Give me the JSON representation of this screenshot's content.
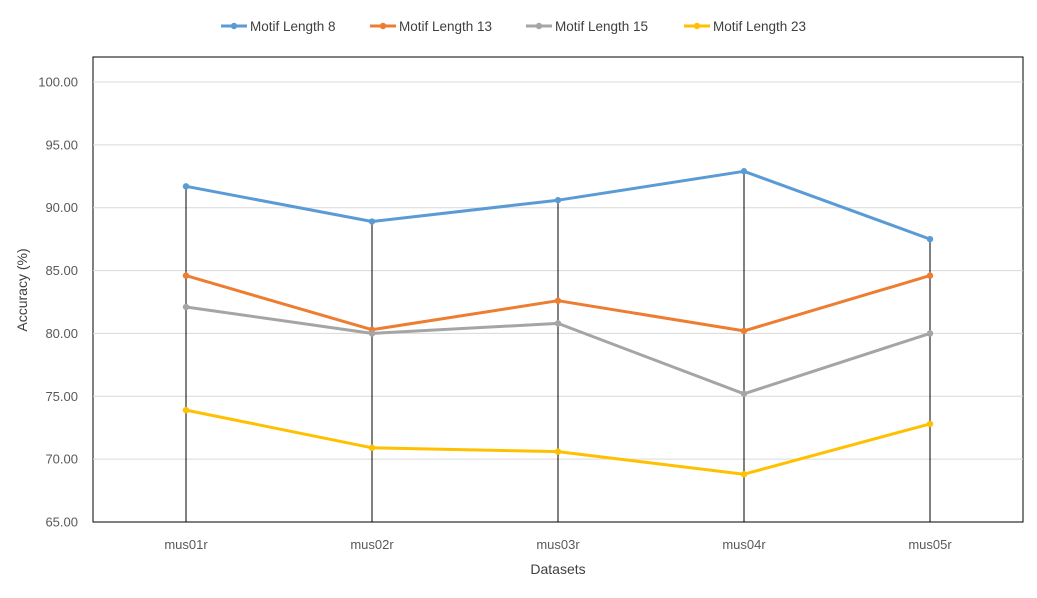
{
  "chart_data": {
    "type": "line",
    "xlabel": "Datasets",
    "ylabel": "Accuracy (%)",
    "categories": [
      "mus01r",
      "mus02r",
      "mus03r",
      "mus04r",
      "mus05r"
    ],
    "ylim": [
      65,
      100
    ],
    "y_ticks": [
      "65.00",
      "70.00",
      "75.00",
      "80.00",
      "85.00",
      "90.00",
      "95.00",
      "100.00"
    ],
    "y_tick_values": [
      65,
      70,
      75,
      80,
      85,
      90,
      95,
      100
    ],
    "grid": true,
    "drop_lines": true,
    "legend_position": "top",
    "series": [
      {
        "name": "Motif Length 8",
        "color": "#5B9BD5",
        "values": [
          91.7,
          88.9,
          90.6,
          92.9,
          87.5
        ]
      },
      {
        "name": "Motif Length 13",
        "color": "#ED7D31",
        "values": [
          84.6,
          80.3,
          82.6,
          80.2,
          84.6
        ]
      },
      {
        "name": "Motif Length 15",
        "color": "#A5A5A5",
        "values": [
          82.1,
          80.0,
          80.8,
          75.2,
          80.0
        ]
      },
      {
        "name": "Motif Length 23",
        "color": "#FFC000",
        "values": [
          73.9,
          70.9,
          70.6,
          68.8,
          72.8
        ]
      }
    ]
  }
}
